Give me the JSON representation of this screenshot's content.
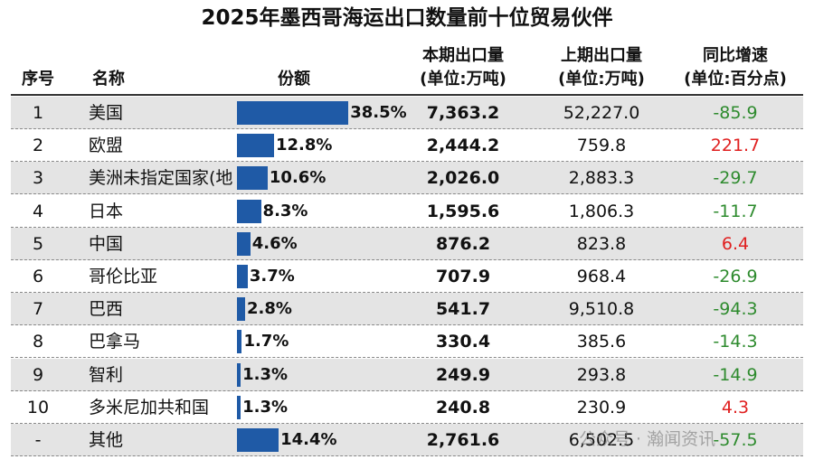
{
  "title": "2025年墨西哥海运出口数量前十位贸易伙伴",
  "header": {
    "index": "序号",
    "name": "名称",
    "share": "份额",
    "current": [
      "本期出口量",
      "(单位:万吨)"
    ],
    "previous": [
      "上期出口量",
      "(单位:万吨)"
    ],
    "yoy": [
      "同比增速",
      "(单位:百分点)"
    ]
  },
  "table": {
    "rows": [
      {
        "index": "1",
        "name": "美国",
        "share": {
          "value": 38.5,
          "label": "38.5%"
        },
        "current": "7,363.2",
        "previous": "52,227.0",
        "yoy": -85.9
      },
      {
        "index": "2",
        "name": "欧盟",
        "share": {
          "value": 12.8,
          "label": "12.8%"
        },
        "current": "2,444.2",
        "previous": "759.8",
        "yoy": 221.7
      },
      {
        "index": "3",
        "name": "美洲未指定国家(地",
        "share": {
          "value": 10.6,
          "label": "10.6%"
        },
        "current": "2,026.0",
        "previous": "2,883.3",
        "yoy": -29.7
      },
      {
        "index": "4",
        "name": "日本",
        "share": {
          "value": 8.3,
          "label": "8.3%"
        },
        "current": "1,595.6",
        "previous": "1,806.3",
        "yoy": -11.7
      },
      {
        "index": "5",
        "name": "中国",
        "share": {
          "value": 4.6,
          "label": "4.6%"
        },
        "current": "876.2",
        "previous": "823.8",
        "yoy": 6.4
      },
      {
        "index": "6",
        "name": "哥伦比亚",
        "share": {
          "value": 3.7,
          "label": "3.7%"
        },
        "current": "707.9",
        "previous": "968.4",
        "yoy": -26.9
      },
      {
        "index": "7",
        "name": "巴西",
        "share": {
          "value": 2.8,
          "label": "2.8%"
        },
        "current": "541.7",
        "previous": "9,510.8",
        "yoy": -94.3
      },
      {
        "index": "8",
        "name": "巴拿马",
        "share": {
          "value": 1.7,
          "label": "1.7%"
        },
        "current": "330.4",
        "previous": "385.6",
        "yoy": -14.3
      },
      {
        "index": "9",
        "name": "智利",
        "share": {
          "value": 1.3,
          "label": "1.3%"
        },
        "current": "249.9",
        "previous": "293.8",
        "yoy": -14.9
      },
      {
        "index": "10",
        "name": "多米尼加共和国",
        "share": {
          "value": 1.3,
          "label": "1.3%"
        },
        "current": "240.8",
        "previous": "230.9",
        "yoy": 4.3
      },
      {
        "index": "-",
        "name": "其他",
        "share": {
          "value": 14.4,
          "label": "14.4%"
        },
        "current": "2,761.6",
        "previous": "6,502.5",
        "yoy": -57.5
      }
    ]
  },
  "watermark": "公众号 · 瀚闻资讯"
}
